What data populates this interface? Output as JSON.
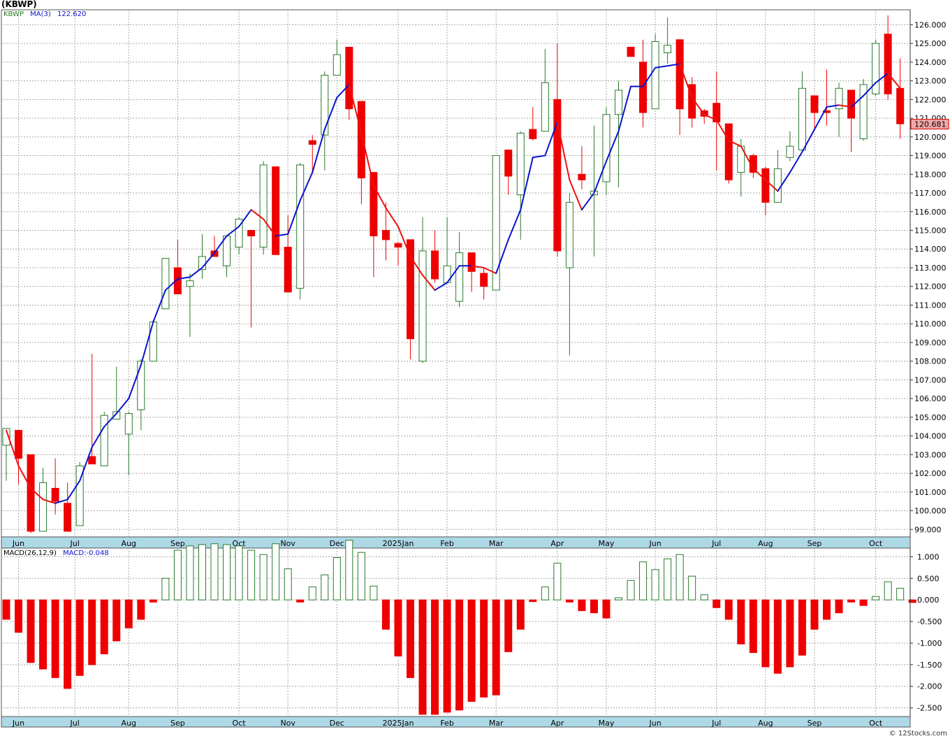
{
  "header": {
    "symbol_title": "(KBWP)",
    "legend_symbol": "KBWP",
    "legend_ma": "MA(3)",
    "legend_ma_value": "122.620",
    "legend_macd": "MACD(26,12,9)",
    "legend_macd_value": "MACD:-0.048"
  },
  "footer": {
    "credit": "© 12Stocks.com"
  },
  "colors": {
    "up": "#2a7a2a",
    "down": "#ee0000",
    "ma_up": "#0a14cc",
    "ma_down": "#ee1111",
    "grid": "#a8a8a8",
    "axis_band": "#add8e6"
  },
  "chart_data": [
    {
      "type": "candlestick",
      "title": "(KBWP)",
      "ylim": [
        98.6,
        126.8
      ],
      "y_ticks": [
        "99.000",
        "100.000",
        "101.000",
        "102.000",
        "103.000",
        "104.000",
        "105.000",
        "106.000",
        "107.000",
        "108.000",
        "109.000",
        "110.000",
        "111.000",
        "112.000",
        "113.000",
        "114.000",
        "115.000",
        "116.000",
        "117.000",
        "118.000",
        "119.000",
        "120.000",
        "121.000",
        "122.000",
        "123.000",
        "124.000",
        "125.000",
        "126.000"
      ],
      "x_month_labels": [
        {
          "label": "Jun",
          "week": 1
        },
        {
          "label": "Jul",
          "week": 5.6
        },
        {
          "label": "Aug",
          "week": 10
        },
        {
          "label": "Sep",
          "week": 14
        },
        {
          "label": "Oct",
          "week": 19
        },
        {
          "label": "Nov",
          "week": 23
        },
        {
          "label": "Dec",
          "week": 27
        },
        {
          "label": "2025Jan",
          "week": 32
        },
        {
          "label": "Feb",
          "week": 36
        },
        {
          "label": "Mar",
          "week": 40
        },
        {
          "label": "Apr",
          "week": 45
        },
        {
          "label": "May",
          "week": 49
        },
        {
          "label": "Jun",
          "week": 53
        },
        {
          "label": "Jul",
          "week": 58
        },
        {
          "label": "Aug",
          "week": 62
        },
        {
          "label": "Sep",
          "week": 66
        },
        {
          "label": "Oct",
          "week": 71
        }
      ],
      "last_price_label": "120.681",
      "ohlc": [
        [
          103.5,
          104.4,
          101.6,
          104.4
        ],
        [
          104.3,
          104.3,
          101.4,
          102.8
        ],
        [
          103.0,
          103.0,
          98.8,
          98.9
        ],
        [
          98.9,
          102.3,
          98.9,
          101.5
        ],
        [
          101.2,
          102.8,
          99.8,
          100.5
        ],
        [
          100.4,
          101.5,
          98.9,
          98.9
        ],
        [
          99.2,
          102.6,
          99.2,
          102.4
        ],
        [
          102.9,
          108.4,
          102.5,
          102.5
        ],
        [
          102.4,
          105.3,
          102.4,
          105.1
        ],
        [
          104.9,
          107.7,
          104.9,
          105.3
        ],
        [
          104.1,
          105.3,
          101.9,
          105.2
        ],
        [
          105.4,
          108.1,
          104.3,
          108.0
        ],
        [
          108.0,
          110.2,
          108.0,
          110.1
        ],
        [
          110.8,
          113.5,
          110.8,
          113.5
        ],
        [
          113.0,
          114.5,
          111.6,
          111.6
        ],
        [
          112.0,
          112.7,
          109.3,
          112.3
        ],
        [
          112.9,
          114.8,
          112.4,
          113.6
        ],
        [
          113.9,
          114.7,
          113.6,
          113.6
        ],
        [
          113.1,
          114.7,
          112.5,
          114.7
        ],
        [
          114.1,
          115.7,
          113.7,
          115.6
        ],
        [
          115.0,
          115.0,
          109.8,
          114.7
        ],
        [
          114.1,
          118.7,
          113.7,
          118.5
        ],
        [
          118.4,
          118.4,
          113.7,
          113.7
        ],
        [
          114.1,
          115.8,
          111.7,
          111.7
        ],
        [
          111.9,
          118.6,
          111.3,
          118.5
        ],
        [
          119.8,
          120.1,
          118.0,
          119.6
        ],
        [
          120.1,
          123.5,
          118.2,
          123.3
        ],
        [
          123.3,
          125.2,
          123.3,
          124.4
        ],
        [
          124.8,
          124.8,
          120.9,
          121.5
        ],
        [
          121.9,
          121.9,
          116.4,
          117.8
        ],
        [
          118.1,
          118.1,
          112.5,
          114.7
        ],
        [
          115.0,
          116.5,
          113.4,
          114.5
        ],
        [
          114.3,
          114.4,
          113.1,
          114.1
        ],
        [
          114.5,
          114.5,
          108.1,
          109.2
        ],
        [
          108.0,
          115.7,
          107.9,
          113.9
        ],
        [
          113.9,
          115.0,
          112.2,
          112.4
        ],
        [
          112.2,
          115.7,
          112.2,
          113.1
        ],
        [
          111.2,
          114.9,
          110.9,
          113.8
        ],
        [
          113.8,
          113.8,
          111.7,
          112.8
        ],
        [
          112.7,
          113.0,
          111.3,
          112.0
        ],
        [
          111.8,
          119.0,
          111.8,
          119.0
        ],
        [
          119.3,
          119.3,
          116.9,
          117.9
        ],
        [
          116.9,
          120.3,
          114.5,
          120.2
        ],
        [
          120.4,
          121.6,
          119.8,
          119.9
        ],
        [
          120.3,
          124.7,
          120.3,
          122.9
        ],
        [
          122.0,
          125.0,
          113.6,
          113.9
        ],
        [
          113.0,
          117.0,
          108.3,
          116.5
        ],
        [
          118.0,
          119.5,
          117.2,
          117.7
        ],
        [
          116.9,
          120.6,
          113.6,
          117.1
        ],
        [
          117.6,
          121.6,
          116.9,
          121.2
        ],
        [
          121.2,
          123.0,
          117.3,
          122.5
        ],
        [
          124.8,
          124.8,
          124.3,
          124.3
        ],
        [
          124.0,
          125.2,
          120.5,
          121.3
        ],
        [
          121.5,
          125.5,
          121.5,
          125.1
        ],
        [
          124.5,
          126.4,
          123.9,
          124.9
        ],
        [
          125.2,
          125.2,
          120.1,
          121.5
        ],
        [
          122.8,
          123.2,
          120.5,
          121.0
        ],
        [
          121.4,
          121.5,
          120.7,
          121.1
        ],
        [
          121.8,
          123.5,
          118.2,
          120.8
        ],
        [
          120.7,
          120.7,
          117.5,
          117.7
        ],
        [
          118.1,
          119.9,
          116.8,
          119.5
        ],
        [
          119.0,
          119.1,
          117.8,
          118.1
        ],
        [
          118.3,
          118.4,
          115.8,
          116.5
        ],
        [
          116.5,
          119.3,
          116.5,
          118.3
        ],
        [
          118.9,
          120.3,
          118.7,
          119.5
        ],
        [
          119.3,
          123.5,
          119.2,
          122.6
        ],
        [
          122.2,
          122.2,
          120.4,
          121.3
        ],
        [
          121.4,
          123.6,
          120.6,
          121.3
        ],
        [
          121.5,
          122.9,
          120.0,
          122.6
        ],
        [
          122.5,
          122.5,
          119.2,
          121.0
        ],
        [
          119.9,
          123.1,
          119.8,
          122.8
        ],
        [
          122.3,
          125.2,
          122.2,
          125.0
        ],
        [
          125.5,
          126.5,
          122.0,
          122.3
        ],
        [
          122.6,
          124.2,
          119.9,
          120.7
        ]
      ],
      "ma3": [
        104.3,
        102.4,
        101.2,
        100.6,
        100.4,
        100.6,
        101.6,
        103.4,
        104.5,
        105.2,
        106.0,
        107.8,
        110.1,
        111.8,
        112.4,
        112.5,
        113.0,
        113.8,
        114.7,
        115.2,
        116.1,
        115.6,
        114.7,
        114.8,
        116.6,
        118.1,
        120.4,
        122.1,
        122.8,
        120.2,
        117.4,
        116.2,
        115.2,
        113.6,
        112.6,
        111.8,
        112.2,
        113.1,
        113.1,
        113.0,
        112.7,
        114.5,
        116.1,
        118.9,
        119.0,
        120.8,
        117.7,
        116.1,
        117.0,
        118.7,
        120.3,
        122.7,
        122.7,
        123.7,
        123.8,
        123.9,
        122.1,
        121.2,
        120.9,
        119.8,
        119.5,
        118.3,
        117.7,
        117.1,
        118.1,
        119.2,
        120.4,
        121.6,
        121.7,
        121.6,
        122.2,
        122.9,
        123.4,
        122.6
      ],
      "ma_legend": "MA(3)"
    },
    {
      "type": "bar",
      "title": "MACD(26,12,9)",
      "ylim": [
        -2.7,
        1.2
      ],
      "y_ticks": [
        "1.000",
        "0.500",
        "0.000",
        "-0.500",
        "-1.000",
        "-1.500",
        "-2.000",
        "-2.500"
      ],
      "histogram": [
        -0.45,
        -0.75,
        -1.45,
        -1.6,
        -1.8,
        -2.05,
        -1.75,
        -1.5,
        -1.25,
        -0.95,
        -0.65,
        -0.45,
        -0.05,
        0.5,
        1.15,
        1.25,
        1.28,
        1.3,
        1.28,
        1.25,
        1.15,
        1.05,
        1.3,
        0.72,
        -0.05,
        0.3,
        0.58,
        0.98,
        1.38,
        1.1,
        0.32,
        -0.68,
        -1.3,
        -1.8,
        -2.65,
        -2.65,
        -2.6,
        -2.55,
        -2.35,
        -2.25,
        -2.2,
        -1.2,
        -0.68,
        -0.04,
        0.3,
        0.85,
        -0.05,
        -0.25,
        -0.3,
        -0.42,
        0.05,
        0.45,
        0.88,
        0.7,
        0.95,
        1.05,
        0.55,
        0.12,
        -0.18,
        -0.45,
        -1.02,
        -1.22,
        -1.55,
        -1.7,
        -1.55,
        -1.28,
        -0.68,
        -0.45,
        -0.3,
        -0.05,
        -0.13,
        0.08,
        0.42,
        0.27,
        -0.06
      ],
      "x_month_labels_same_as_price": true
    }
  ]
}
